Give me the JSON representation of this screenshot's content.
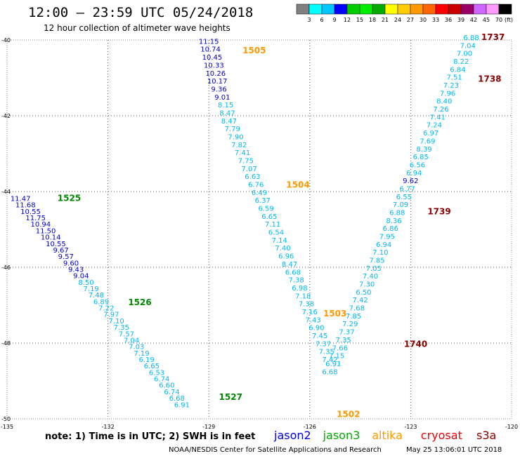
{
  "title": "12:00 – 23:59 UTC 05/24/2018",
  "subtitle": "12 hour collection of altimeter wave heights",
  "note": "note:  1) Time is in UTC;  2) SWH is in feet",
  "credit": "NOAA/NESDIS Center for Satellite Applications and Research",
  "timestamp": "May 25 13:06:01 UTC 2018",
  "satellites": [
    {
      "name": "jason2",
      "color": "#0000ee"
    },
    {
      "name": "jason3",
      "color": "#00aa00"
    },
    {
      "name": "altika",
      "color": "#ff9900"
    },
    {
      "name": "cryosat",
      "color": "#ee0000"
    },
    {
      "name": "s3a",
      "color": "#880000"
    }
  ],
  "color_scale": {
    "unit": "(ft)",
    "labels": [
      "3",
      "6",
      "9",
      "12",
      "15",
      "18",
      "21",
      "24",
      "27",
      "30",
      "33",
      "36",
      "39",
      "42",
      "45",
      "70"
    ],
    "colors": [
      "#808080",
      "#00ffff",
      "#00c8ff",
      "#0000ff",
      "#00cc00",
      "#00ee00",
      "#00aa00",
      "#ffff00",
      "#ffcc00",
      "#ff9900",
      "#ff6600",
      "#ff0000",
      "#cc0000",
      "#990066",
      "#cc66ff",
      "#ff99ff",
      "#000000"
    ]
  },
  "chart_data": {
    "type": "scatter",
    "xlabel": "",
    "ylabel": "",
    "xlim": [
      -135,
      -120
    ],
    "ylim": [
      -50,
      -40
    ],
    "x_ticks": [
      -135,
      -132,
      -129,
      -126,
      -123,
      -120
    ],
    "x_tick_labels": [
      "-135",
      "-132",
      "-129",
      "-126",
      "-123",
      "-120"
    ],
    "y_ticks": [
      -40,
      -42,
      -44,
      -46,
      -48,
      -50
    ],
    "y_tick_labels": [
      "-40",
      "-42",
      "-44",
      "-46",
      "-48",
      "-50"
    ],
    "grid": true,
    "value_unit": "SWH (ft)",
    "pass_labels": [
      {
        "text": "1525",
        "x": -133.5,
        "y": -44.25,
        "color": "#008800"
      },
      {
        "text": "1526",
        "x": -131.4,
        "y": -47.0,
        "color": "#008800"
      },
      {
        "text": "1527",
        "x": -128.7,
        "y": -49.5,
        "color": "#008800"
      },
      {
        "text": "1505",
        "x": -128.0,
        "y": -40.35,
        "color": "#ff9900"
      },
      {
        "text": "1504",
        "x": -126.7,
        "y": -43.9,
        "color": "#ff9900"
      },
      {
        "text": "1503",
        "x": -125.6,
        "y": -47.3,
        "color": "#ff9900"
      },
      {
        "text": "1502",
        "x": -125.2,
        "y": -49.95,
        "color": "#ff9900"
      },
      {
        "text": "1737",
        "x": -120.9,
        "y": -40.0,
        "color": "#880000"
      },
      {
        "text": "1738",
        "x": -121.0,
        "y": -41.1,
        "color": "#880000"
      },
      {
        "text": "1739",
        "x": -122.5,
        "y": -44.6,
        "color": "#880000"
      },
      {
        "text": "1740",
        "x": -123.2,
        "y": -48.1,
        "color": "#880000"
      }
    ],
    "series": [
      {
        "name": "jason3",
        "color_tier": "track 1525-1527",
        "points": [
          {
            "x": -134.6,
            "y": -44.25,
            "v": "11.47"
          },
          {
            "x": -134.45,
            "y": -44.42,
            "v": "11.68"
          },
          {
            "x": -134.3,
            "y": -44.59,
            "v": "10.55"
          },
          {
            "x": -134.15,
            "y": -44.76,
            "v": "11.75"
          },
          {
            "x": -134.0,
            "y": -44.93,
            "v": "10.94"
          },
          {
            "x": -133.85,
            "y": -45.1,
            "v": "11.50"
          },
          {
            "x": -133.7,
            "y": -45.27,
            "v": "10.14"
          },
          {
            "x": -133.55,
            "y": -45.44,
            "v": "10.55"
          },
          {
            "x": -133.4,
            "y": -45.61,
            "v": "9.67"
          },
          {
            "x": -133.25,
            "y": -45.78,
            "v": "9.57"
          },
          {
            "x": -133.1,
            "y": -45.95,
            "v": "9.60"
          },
          {
            "x": -132.95,
            "y": -46.12,
            "v": "9.43"
          },
          {
            "x": -132.8,
            "y": -46.29,
            "v": "9.04"
          },
          {
            "x": -132.65,
            "y": -46.46,
            "v": "8.50"
          },
          {
            "x": -132.5,
            "y": -46.63,
            "v": "7.19"
          },
          {
            "x": -132.35,
            "y": -46.8,
            "v": "7.48"
          },
          {
            "x": -132.2,
            "y": -46.97,
            "v": "6.89"
          },
          {
            "x": -132.05,
            "y": -47.14,
            "v": "7.22"
          },
          {
            "x": -131.9,
            "y": -47.31,
            "v": "7.97"
          },
          {
            "x": -131.75,
            "y": -47.48,
            "v": "7.10"
          },
          {
            "x": -131.6,
            "y": -47.65,
            "v": "7.35"
          },
          {
            "x": -131.45,
            "y": -47.82,
            "v": "7.57"
          },
          {
            "x": -131.3,
            "y": -47.99,
            "v": "7.04"
          },
          {
            "x": -131.15,
            "y": -48.16,
            "v": "7.03"
          },
          {
            "x": -131.0,
            "y": -48.33,
            "v": "7.19"
          },
          {
            "x": -130.85,
            "y": -48.5,
            "v": "6.19"
          },
          {
            "x": -130.7,
            "y": -48.67,
            "v": "6.65"
          },
          {
            "x": -130.55,
            "y": -48.84,
            "v": "6.53"
          },
          {
            "x": -130.4,
            "y": -49.01,
            "v": "6.74"
          },
          {
            "x": -130.25,
            "y": -49.18,
            "v": "6.60"
          },
          {
            "x": -130.1,
            "y": -49.35,
            "v": "6.74"
          },
          {
            "x": -129.95,
            "y": -49.52,
            "v": "6.68"
          },
          {
            "x": -129.8,
            "y": -49.69,
            "v": "6.91"
          }
        ]
      },
      {
        "name": "altika",
        "color_tier": "track 1502-1505",
        "points": [
          {
            "x": -129.0,
            "y": -40.1,
            "v": "11.15"
          },
          {
            "x": -128.95,
            "y": -40.31,
            "v": "10.74"
          },
          {
            "x": -128.9,
            "y": -40.52,
            "v": "10.45"
          },
          {
            "x": -128.85,
            "y": -40.73,
            "v": "10.33"
          },
          {
            "x": -128.8,
            "y": -40.94,
            "v": "10.26"
          },
          {
            "x": -128.75,
            "y": -41.15,
            "v": "10.17"
          },
          {
            "x": -128.7,
            "y": -41.36,
            "v": "9.36"
          },
          {
            "x": -128.6,
            "y": -41.57,
            "v": "9.01"
          },
          {
            "x": -128.5,
            "y": -41.78,
            "v": "8.15"
          },
          {
            "x": -128.45,
            "y": -41.99,
            "v": "8.47"
          },
          {
            "x": -128.4,
            "y": -42.2,
            "v": "8.47"
          },
          {
            "x": -128.3,
            "y": -42.41,
            "v": "7.79"
          },
          {
            "x": -128.2,
            "y": -42.62,
            "v": "7.90"
          },
          {
            "x": -128.1,
            "y": -42.83,
            "v": "7.82"
          },
          {
            "x": -128.0,
            "y": -43.04,
            "v": "7.41"
          },
          {
            "x": -127.9,
            "y": -43.25,
            "v": "7.75"
          },
          {
            "x": -127.8,
            "y": -43.46,
            "v": "7.07"
          },
          {
            "x": -127.7,
            "y": -43.67,
            "v": "6.63"
          },
          {
            "x": -127.6,
            "y": -43.88,
            "v": "6.76"
          },
          {
            "x": -127.5,
            "y": -44.09,
            "v": "6.49"
          },
          {
            "x": -127.4,
            "y": -44.3,
            "v": "6.37"
          },
          {
            "x": -127.3,
            "y": -44.51,
            "v": "6.59"
          },
          {
            "x": -127.2,
            "y": -44.72,
            "v": "6.65"
          },
          {
            "x": -127.1,
            "y": -44.93,
            "v": "7.11"
          },
          {
            "x": -127.0,
            "y": -45.14,
            "v": "6.54"
          },
          {
            "x": -126.9,
            "y": -45.35,
            "v": "7.14"
          },
          {
            "x": -126.8,
            "y": -45.56,
            "v": "7.40"
          },
          {
            "x": -126.7,
            "y": -45.77,
            "v": "6.96"
          },
          {
            "x": -126.6,
            "y": -45.98,
            "v": "8.47"
          },
          {
            "x": -126.5,
            "y": -46.19,
            "v": "6.68"
          },
          {
            "x": -126.4,
            "y": -46.4,
            "v": "7.38"
          },
          {
            "x": -126.3,
            "y": -46.61,
            "v": "6.98"
          },
          {
            "x": -126.2,
            "y": -46.82,
            "v": "7.18"
          },
          {
            "x": -126.1,
            "y": -47.03,
            "v": "7.38"
          },
          {
            "x": -126.0,
            "y": -47.24,
            "v": "7.16"
          },
          {
            "x": -125.9,
            "y": -47.45,
            "v": "7.43"
          },
          {
            "x": -125.8,
            "y": -47.66,
            "v": "6.90"
          },
          {
            "x": -125.7,
            "y": -47.87,
            "v": "7.45"
          },
          {
            "x": -125.6,
            "y": -48.08,
            "v": "7.37"
          },
          {
            "x": -125.5,
            "y": -48.29,
            "v": "7.35"
          },
          {
            "x": -125.4,
            "y": -48.5,
            "v": "7.42"
          }
        ]
      },
      {
        "name": "s3a",
        "color_tier": "track 1737-1740",
        "points": [
          {
            "x": -121.2,
            "y": -40.0,
            "v": "6.88"
          },
          {
            "x": -121.3,
            "y": -40.21,
            "v": "7.04"
          },
          {
            "x": -121.4,
            "y": -40.42,
            "v": "7.00"
          },
          {
            "x": -121.5,
            "y": -40.63,
            "v": "8.22"
          },
          {
            "x": -121.6,
            "y": -40.84,
            "v": "6.84"
          },
          {
            "x": -121.7,
            "y": -41.05,
            "v": "7.51"
          },
          {
            "x": -121.8,
            "y": -41.26,
            "v": "7.23"
          },
          {
            "x": -121.9,
            "y": -41.47,
            "v": "7.96"
          },
          {
            "x": -122.0,
            "y": -41.68,
            "v": "8.40"
          },
          {
            "x": -122.1,
            "y": -41.89,
            "v": "7.26"
          },
          {
            "x": -122.2,
            "y": -42.1,
            "v": "7.41"
          },
          {
            "x": -122.3,
            "y": -42.31,
            "v": "7.24"
          },
          {
            "x": -122.4,
            "y": -42.52,
            "v": "6.97"
          },
          {
            "x": -122.5,
            "y": -42.73,
            "v": "7.69"
          },
          {
            "x": -122.6,
            "y": -42.94,
            "v": "8.39"
          },
          {
            "x": -122.7,
            "y": -43.15,
            "v": "6.85"
          },
          {
            "x": -122.8,
            "y": -43.36,
            "v": "6.56"
          },
          {
            "x": -122.9,
            "y": -43.57,
            "v": "6.94"
          },
          {
            "x": -123.0,
            "y": -43.78,
            "v": "9.62"
          },
          {
            "x": -123.1,
            "y": -43.99,
            "v": "6.77"
          },
          {
            "x": -123.2,
            "y": -44.2,
            "v": "6.55"
          },
          {
            "x": -123.3,
            "y": -44.41,
            "v": "7.09"
          },
          {
            "x": -123.4,
            "y": -44.62,
            "v": "6.88"
          },
          {
            "x": -123.5,
            "y": -44.83,
            "v": "8.36"
          },
          {
            "x": -123.6,
            "y": -45.04,
            "v": "6.86"
          },
          {
            "x": -123.7,
            "y": -45.25,
            "v": "7.95"
          },
          {
            "x": -123.8,
            "y": -45.46,
            "v": "6.94"
          },
          {
            "x": -123.9,
            "y": -45.67,
            "v": "7.10"
          },
          {
            "x": -124.0,
            "y": -45.88,
            "v": "7.85"
          },
          {
            "x": -124.1,
            "y": -46.09,
            "v": "7.05"
          },
          {
            "x": -124.2,
            "y": -46.3,
            "v": "7.40"
          },
          {
            "x": -124.3,
            "y": -46.51,
            "v": "7.30"
          },
          {
            "x": -124.4,
            "y": -46.72,
            "v": "6.50"
          },
          {
            "x": -124.5,
            "y": -46.93,
            "v": "7.42"
          },
          {
            "x": -124.6,
            "y": -47.14,
            "v": "7.68"
          },
          {
            "x": -124.7,
            "y": -47.35,
            "v": "7.85"
          },
          {
            "x": -124.8,
            "y": -47.56,
            "v": "7.29"
          },
          {
            "x": -124.9,
            "y": -47.77,
            "v": "7.37"
          },
          {
            "x": -125.0,
            "y": -47.98,
            "v": "7.35"
          },
          {
            "x": -125.1,
            "y": -48.19,
            "v": "7.66"
          },
          {
            "x": -125.2,
            "y": -48.4,
            "v": "7.15"
          },
          {
            "x": -125.3,
            "y": -48.61,
            "v": "6.91"
          },
          {
            "x": -125.4,
            "y": -48.82,
            "v": "6.68"
          }
        ]
      }
    ]
  }
}
